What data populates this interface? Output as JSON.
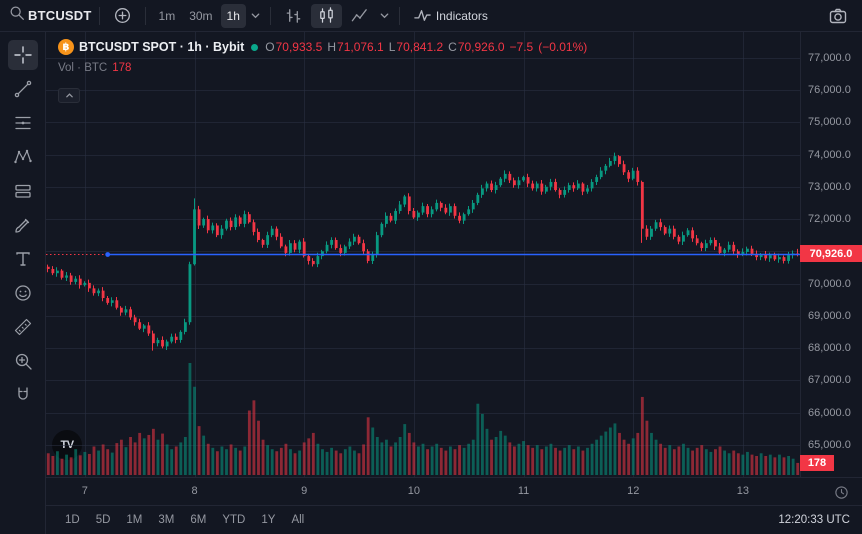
{
  "topbar": {
    "symbol": "BTCUSDT",
    "intervals": [
      {
        "label": "1m",
        "active": false
      },
      {
        "label": "30m",
        "active": false
      },
      {
        "label": "1h",
        "active": true
      }
    ],
    "chart_styles": [
      {
        "name": "bars",
        "active": false
      },
      {
        "name": "candles",
        "active": true
      },
      {
        "name": "area",
        "active": false
      }
    ],
    "indicators_label": "Indicators"
  },
  "left_toolbar": {
    "tools": [
      {
        "name": "crosshair",
        "active": true
      },
      {
        "name": "trend-line",
        "active": false
      },
      {
        "name": "fib-retracement",
        "active": false
      },
      {
        "name": "xabcd-pattern",
        "active": false
      },
      {
        "name": "long-position",
        "active": false
      },
      {
        "name": "brush",
        "active": false
      },
      {
        "name": "text",
        "active": false
      },
      {
        "name": "emoji",
        "active": false
      },
      {
        "name": "ruler",
        "active": false
      },
      {
        "name": "zoom-in",
        "active": false
      },
      {
        "name": "magnet",
        "active": false
      }
    ]
  },
  "legend": {
    "symbol_icon": "฿",
    "title": "BTCUSDT SPOT · 1h · Bybit",
    "o_label": "O",
    "o_value": "70,933.5",
    "h_label": "H",
    "h_value": "71,076.1",
    "l_label": "L",
    "l_value": "70,841.2",
    "c_label": "C",
    "c_value": "70,926.0",
    "change": "−7.5",
    "change_pct": "(−0.01%)",
    "vol_label": "Vol · BTC",
    "vol_value": "178"
  },
  "watermark": {
    "label": "TV"
  },
  "chart_data": {
    "type": "candlestick",
    "title": "BTCUSDT SPOT · 1h · Bybit",
    "interval": "1h",
    "last": {
      "open": 70933.5,
      "high": 71076.1,
      "low": 70841.2,
      "close": 70926.0,
      "volume": 178
    },
    "first_open": 70520,
    "closes": [
      70450,
      70320,
      70400,
      70180,
      70250,
      70050,
      70150,
      69950,
      70020,
      69850,
      69700,
      69780,
      69550,
      69400,
      69480,
      69250,
      69100,
      69200,
      68950,
      68800,
      68600,
      68700,
      68450,
      68150,
      68250,
      68050,
      68200,
      68350,
      68250,
      68500,
      68800,
      70600,
      72300,
      71800,
      72000,
      71650,
      71800,
      71500,
      71700,
      71950,
      71750,
      72050,
      71850,
      72150,
      71900,
      71600,
      71350,
      71200,
      71500,
      71700,
      71450,
      71150,
      70950,
      71250,
      71050,
      71300,
      70850,
      70700,
      70600,
      70850,
      71000,
      71200,
      71350,
      71100,
      70950,
      71150,
      71300,
      71450,
      71250,
      71000,
      70700,
      70900,
      71500,
      71850,
      72100,
      71950,
      72250,
      72450,
      72700,
      72250,
      72050,
      72200,
      72400,
      72150,
      72300,
      72500,
      72350,
      72200,
      72400,
      72100,
      71950,
      72150,
      72300,
      72500,
      72750,
      72950,
      73100,
      72900,
      73050,
      73250,
      73400,
      73200,
      73050,
      73200,
      73300,
      73100,
      72950,
      73100,
      72850,
      73000,
      73150,
      72900,
      72750,
      72900,
      73050,
      72950,
      73100,
      72850,
      72950,
      73150,
      73300,
      73500,
      73650,
      73800,
      73950,
      73700,
      73450,
      73250,
      73500,
      73150,
      71700,
      71450,
      71700,
      71900,
      71750,
      71550,
      71700,
      71450,
      71300,
      71500,
      71650,
      71400,
      71250,
      71100,
      71250,
      71350,
      71150,
      70950,
      71050,
      71200,
      71000,
      70900,
      70980,
      71080,
      70920,
      70820,
      70900,
      70780,
      70880,
      70750,
      70820,
      70700,
      70880,
      70933.5,
      70926
    ],
    "volumes": [
      320,
      280,
      350,
      240,
      300,
      260,
      380,
      290,
      340,
      310,
      420,
      360,
      450,
      380,
      330,
      470,
      520,
      410,
      560,
      480,
      620,
      540,
      590,
      680,
      520,
      610,
      450,
      380,
      420,
      480,
      560,
      1650,
      1300,
      720,
      580,
      460,
      400,
      350,
      420,
      380,
      450,
      400,
      360,
      420,
      950,
      1100,
      800,
      520,
      440,
      380,
      350,
      400,
      460,
      380,
      320,
      360,
      480,
      540,
      620,
      460,
      380,
      340,
      400,
      360,
      320,
      380,
      420,
      360,
      320,
      450,
      850,
      700,
      560,
      480,
      520,
      420,
      480,
      560,
      750,
      620,
      480,
      420,
      460,
      380,
      420,
      460,
      400,
      360,
      420,
      380,
      440,
      400,
      460,
      520,
      1050,
      900,
      680,
      520,
      560,
      650,
      580,
      480,
      420,
      460,
      500,
      440,
      400,
      440,
      380,
      420,
      460,
      400,
      360,
      400,
      440,
      380,
      420,
      360,
      400,
      460,
      520,
      580,
      640,
      700,
      760,
      620,
      520,
      460,
      540,
      620,
      1150,
      800,
      620,
      520,
      460,
      400,
      440,
      380,
      420,
      460,
      400,
      360,
      400,
      440,
      380,
      340,
      380,
      420,
      360,
      320,
      360,
      320,
      300,
      340,
      300,
      280,
      320,
      280,
      300,
      260,
      300,
      260,
      280,
      240,
      178
    ],
    "wick_overrides": {
      "23": {
        "low": 67920
      },
      "31": {
        "low": 68720
      },
      "32": {
        "high": 72640
      },
      "124": {
        "high": 74060
      },
      "125": {
        "high": 73980
      },
      "130": {
        "low": 71260
      }
    },
    "price_axis": {
      "ticks": [
        77000,
        76000,
        75000,
        74000,
        73000,
        72000,
        71000,
        70000,
        69000,
        68000,
        67000,
        66000,
        65000
      ],
      "range_top": 77800,
      "range_bottom": 64000
    },
    "time_axis": {
      "labels": [
        "7",
        "8",
        "9",
        "10",
        "11",
        "12",
        "13"
      ],
      "candle_indices": [
        8,
        32,
        56,
        80,
        104,
        128,
        152
      ]
    },
    "horizontal_ray": {
      "price": 70930,
      "start_index": 13,
      "color": "#2962ff"
    },
    "last_price_line": {
      "price": 70926.0,
      "color": "#f23645",
      "style": "dotted"
    },
    "price_badge": "70,926.0",
    "volume_badge": "178",
    "colors": {
      "up": "#089981",
      "down": "#f23645",
      "grid": "rgba(44,50,68,0.55)",
      "volume_up": "rgba(8,153,129,0.55)",
      "volume_down": "rgba(242,54,69,0.55)"
    }
  },
  "bottom_bar": {
    "ranges": [
      "1D",
      "5D",
      "1M",
      "3M",
      "6M",
      "YTD",
      "1Y",
      "All"
    ],
    "clock": "12:20:33 UTC"
  }
}
